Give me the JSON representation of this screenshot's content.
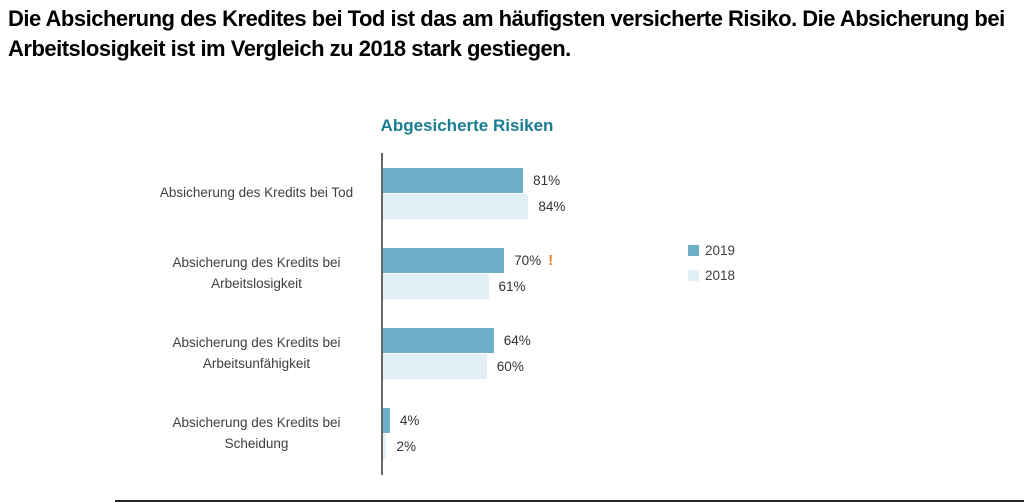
{
  "headline": "Die Absicherung des Kredites bei Tod ist das am häufigsten versicherte Risiko. Die Absicherung bei Arbeitslosigkeit ist im Vergleich zu 2018 stark gestiegen.",
  "chart_data": {
    "type": "bar",
    "orientation": "horizontal",
    "title": "Abgesicherte Risiken",
    "title_color": "#1A7D91",
    "categories": [
      "Absicherung des Kredits bei Tod",
      "Absicherung des Kredits bei Arbeitslosigkeit",
      "Absicherung des Kredits bei Arbeitsunfähigkeit",
      "Absicherung des Kredits bei Scheidung"
    ],
    "series": [
      {
        "name": "2019",
        "color": "#6FAFC7",
        "values": [
          81,
          70,
          64,
          4
        ],
        "data_labels": [
          "81%",
          "70%",
          "64%",
          "4%"
        ]
      },
      {
        "name": "2018",
        "color": "#E2EFF6",
        "values": [
          84,
          61,
          60,
          2
        ],
        "data_labels": [
          "84%",
          "61%",
          "60%",
          "2%"
        ]
      }
    ],
    "annotations": [
      {
        "category_index": 1,
        "series": "2019",
        "text": "!",
        "color": "#ED7D31"
      }
    ],
    "xlim": [
      0,
      100
    ],
    "value_unit": "%",
    "grid": false,
    "legend_position": "right",
    "legend_entries": [
      "2019",
      "2018"
    ]
  }
}
